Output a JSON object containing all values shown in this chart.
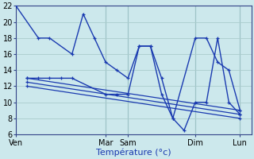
{
  "xlabel": "Température (°c)",
  "background_color": "#cce8ec",
  "grid_color": "#aacccc",
  "line_color": "#1a3ab0",
  "ylim": [
    6,
    22
  ],
  "yticks": [
    6,
    8,
    10,
    12,
    14,
    16,
    18,
    20,
    22
  ],
  "tick_positions": [
    0,
    8,
    10,
    16,
    20
  ],
  "tick_labels": [
    "Ven",
    "Mar",
    "Sam",
    "Dim",
    "Lun"
  ],
  "vline_positions": [
    8,
    10,
    16,
    20
  ],
  "xlim": [
    0,
    21
  ],
  "series1": {
    "x": [
      0,
      2,
      3,
      5,
      6,
      7,
      8,
      9,
      10,
      11,
      12,
      13,
      14,
      16,
      17,
      18,
      19,
      20
    ],
    "y": [
      22,
      18,
      18,
      16,
      21,
      18,
      15,
      14,
      13,
      17,
      17,
      13,
      8,
      18,
      18,
      15,
      14,
      9
    ]
  },
  "series2": {
    "x": [
      1,
      2,
      3,
      4,
      5,
      8,
      9,
      10,
      11,
      12,
      13,
      14,
      15,
      16,
      17,
      18,
      19,
      20
    ],
    "y": [
      13,
      13,
      13,
      13,
      13,
      11,
      11,
      11,
      17,
      17,
      11,
      8,
      6.5,
      10,
      10,
      18,
      10,
      8.5
    ]
  },
  "series_flat1": {
    "x": [
      1,
      20
    ],
    "y": [
      13,
      9
    ]
  },
  "series_flat2": {
    "x": [
      1,
      20
    ],
    "y": [
      12.5,
      8.5
    ]
  },
  "series_flat3": {
    "x": [
      1,
      20
    ],
    "y": [
      12,
      8
    ]
  }
}
